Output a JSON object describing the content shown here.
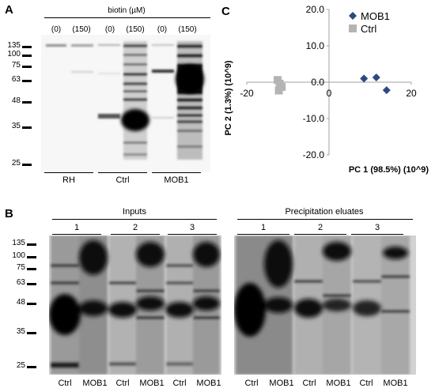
{
  "panel_a": {
    "label": "A",
    "treatment_label": "biotin (µM)",
    "lane_doses": [
      "(0)",
      "(150)",
      "(0)",
      "(150)",
      "(0)",
      "(150)"
    ],
    "mw_markers": [
      "135",
      "100",
      "75",
      "63",
      "48",
      "35",
      "25"
    ],
    "groups": [
      "RH",
      "Ctrl",
      "MOB1"
    ]
  },
  "panel_b": {
    "label": "B",
    "sections": [
      "Inputs",
      "Precipitation eluates"
    ],
    "replicates": [
      "1",
      "2",
      "3"
    ],
    "mw_markers": [
      "135",
      "100",
      "75",
      "63",
      "48",
      "35",
      "25"
    ],
    "lane_labels": [
      "Ctrl",
      "MOB1",
      "Ctrl",
      "MOB1",
      "Ctrl",
      "MOB1"
    ]
  },
  "panel_c": {
    "label": "C",
    "chart_data": {
      "type": "scatter",
      "xlabel": "PC 1 (98.5%) (10^9)",
      "ylabel": "PC 2 (1.3%) (10^9)",
      "xlim": [
        -20,
        20
      ],
      "ylim": [
        -20,
        20
      ],
      "x_tick_labels": [
        "-20",
        "0",
        "20"
      ],
      "y_tick_labels": [
        "20.0",
        "10.0",
        "0.0",
        "-10.0",
        "-20.0"
      ],
      "legend_position": "top-right",
      "series": [
        {
          "name": "MOB1",
          "color": "#2b4b7e",
          "marker": "diamond",
          "points": [
            [
              8.5,
              1.0
            ],
            [
              11.5,
              1.3
            ],
            [
              14.0,
              -2.2
            ]
          ]
        },
        {
          "name": "Ctrl",
          "color": "#b4b4b4",
          "marker": "square",
          "points": [
            [
              -12.5,
              0.6
            ],
            [
              -12.0,
              -0.4
            ],
            [
              -11.5,
              -1.3
            ],
            [
              -12.2,
              -2.3
            ]
          ]
        }
      ]
    }
  }
}
